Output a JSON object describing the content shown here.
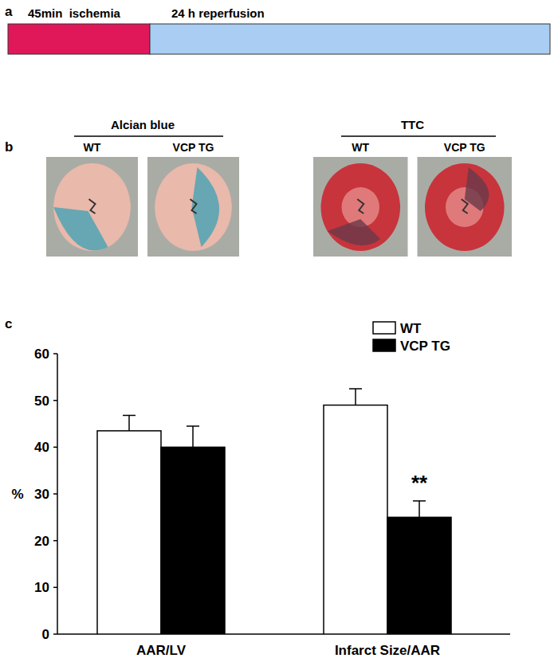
{
  "panel_labels": [
    "a",
    "b",
    "c"
  ],
  "panel_a": {
    "segments": [
      {
        "label": "45min  ischemia",
        "color": "#e0185a"
      },
      {
        "label": "24 h reperfusion",
        "color": "#a9cdf3"
      }
    ]
  },
  "panel_b": {
    "groups": [
      {
        "title": "Alcian blue",
        "images": [
          "WT",
          "VCP TG"
        ]
      },
      {
        "title": "TTC",
        "images": [
          "WT",
          "VCP TG"
        ]
      }
    ]
  },
  "chart_data": {
    "type": "bar",
    "categories": [
      "AAR/LV",
      "Infarct Size/AAR"
    ],
    "series": [
      {
        "name": "WT",
        "color": "#ffffff",
        "values": [
          43.5,
          49
        ],
        "errors": [
          3.3,
          3.5
        ]
      },
      {
        "name": "VCP TG",
        "color": "#000000",
        "values": [
          40,
          25
        ],
        "errors": [
          4.5,
          3.5
        ]
      }
    ],
    "y_label": "%",
    "ylim": [
      0,
      60
    ],
    "yticks": [
      0,
      10,
      20,
      30,
      40,
      50,
      60
    ],
    "legend": "top-right",
    "annotations": [
      {
        "text": "**",
        "category": 1,
        "series": 1
      }
    ]
  }
}
